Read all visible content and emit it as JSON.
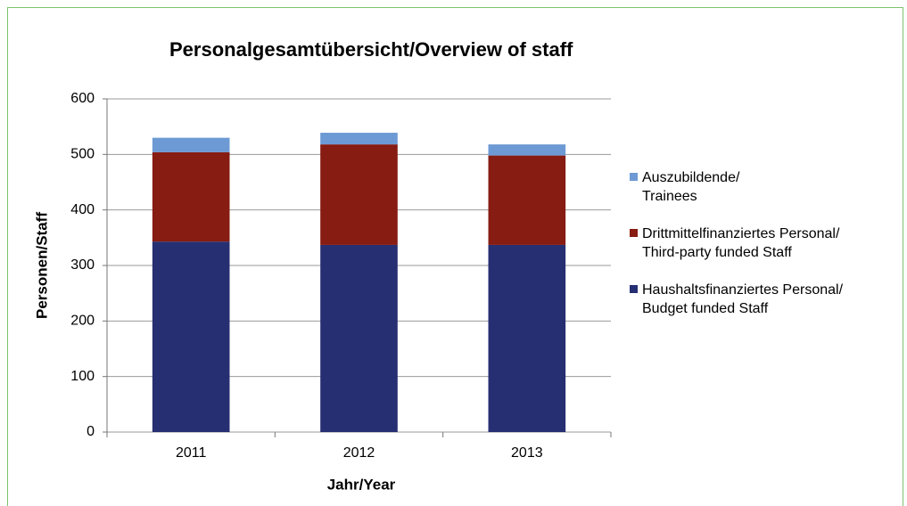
{
  "chart_data": {
    "type": "stacked-bar",
    "title": "Personalgesamtübersicht/Overview of staff",
    "x_label": "Jahr/Year",
    "y_label": "Personen/Staff",
    "categories": [
      "2011",
      "2012",
      "2013"
    ],
    "series": [
      {
        "name": "Haushaltsfinanziertes Personal/\nBudget funded Staff",
        "color": "#262f72",
        "values": [
          343,
          337,
          337
        ]
      },
      {
        "name": "Drittmittelfinanziertes Personal/\nThird-party funded Staff",
        "color": "#861c12",
        "values": [
          161,
          181,
          161
        ]
      },
      {
        "name": "Auszubildende/\nTrainees",
        "color": "#6d9ad4",
        "values": [
          26,
          21,
          20
        ]
      }
    ],
    "ylim": [
      0,
      600
    ],
    "yticks": [
      0,
      100,
      200,
      300,
      400,
      500,
      600
    ],
    "grid": true,
    "legend": "right"
  }
}
